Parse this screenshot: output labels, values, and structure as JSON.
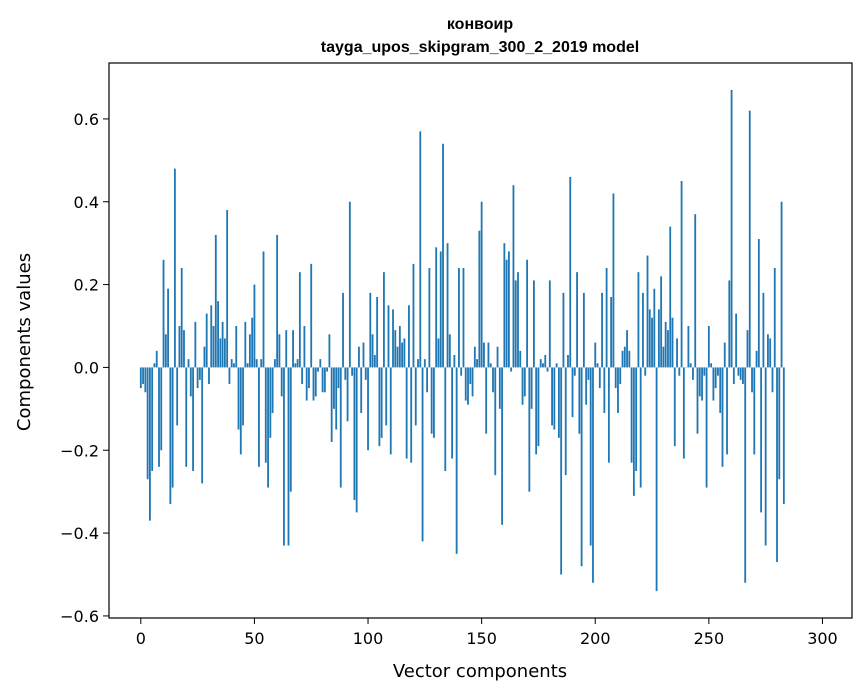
{
  "chart_data": {
    "type": "bar",
    "title_line1": "конвоир",
    "title_line2": "tayga_upos_skipgram_300_2_2019 model",
    "xlabel": "Vector components",
    "ylabel": "Components values",
    "xlim": [
      -14,
      313
    ],
    "ylim": [
      -0.605,
      0.735
    ],
    "xticks": [
      0,
      50,
      100,
      150,
      200,
      250,
      300
    ],
    "xtick_labels": [
      "0",
      "50",
      "100",
      "150",
      "200",
      "250",
      "300"
    ],
    "yticks": [
      -0.6,
      -0.4,
      -0.2,
      0.0,
      0.2,
      0.4,
      0.6
    ],
    "ytick_labels": [
      "−0.6",
      "−0.4",
      "−0.2",
      "0.0",
      "0.2",
      "0.4",
      "0.6"
    ],
    "bar_color": "#1f77b4",
    "grid": false,
    "values": [
      -0.05,
      -0.04,
      -0.06,
      -0.27,
      -0.37,
      -0.25,
      0.01,
      0.04,
      -0.24,
      -0.2,
      0.26,
      0.08,
      0.19,
      -0.33,
      -0.29,
      0.48,
      -0.14,
      0.1,
      0.24,
      0.09,
      -0.24,
      0.02,
      -0.07,
      -0.25,
      0.11,
      -0.05,
      -0.03,
      -0.28,
      0.05,
      0.13,
      -0.04,
      0.15,
      0.1,
      0.32,
      0.16,
      0.07,
      0.11,
      0.07,
      0.38,
      -0.04,
      0.02,
      0.01,
      0.1,
      -0.15,
      -0.21,
      -0.14,
      0.11,
      0.01,
      0.08,
      0.12,
      0.2,
      0.02,
      -0.24,
      0.02,
      0.28,
      -0.23,
      -0.29,
      -0.17,
      -0.11,
      0.02,
      0.32,
      0.08,
      -0.07,
      -0.43,
      0.09,
      -0.43,
      -0.3,
      0.09,
      0.01,
      0.02,
      0.23,
      -0.04,
      0.1,
      -0.08,
      -0.05,
      0.25,
      -0.08,
      -0.07,
      -0.01,
      0.02,
      -0.06,
      -0.06,
      -0.01,
      0.08,
      -0.18,
      -0.1,
      -0.15,
      -0.05,
      -0.29,
      0.18,
      -0.03,
      -0.13,
      0.4,
      -0.02,
      -0.32,
      -0.35,
      0.05,
      -0.11,
      0.06,
      -0.03,
      -0.2,
      0.18,
      0.08,
      0.03,
      0.17,
      -0.19,
      -0.17,
      0.23,
      -0.14,
      0.15,
      -0.21,
      0.14,
      0.09,
      0.05,
      0.1,
      0.06,
      0.07,
      -0.22,
      0.15,
      -0.23,
      0.25,
      -0.14,
      0.02,
      0.57,
      -0.42,
      0.02,
      -0.06,
      0.24,
      -0.16,
      -0.17,
      0.29,
      0.07,
      0.28,
      0.54,
      -0.25,
      0.3,
      0.08,
      -0.22,
      0.03,
      -0.45,
      0.24,
      -0.02,
      0.24,
      -0.08,
      -0.09,
      -0.04,
      -0.07,
      0.05,
      0.02,
      0.33,
      0.4,
      0.06,
      -0.16,
      0.06,
      0.01,
      -0.06,
      -0.26,
      0.05,
      -0.1,
      -0.38,
      0.3,
      0.26,
      0.28,
      -0.01,
      0.44,
      0.21,
      0.23,
      0.04,
      -0.09,
      -0.07,
      0.26,
      -0.3,
      -0.1,
      0.21,
      -0.21,
      -0.19,
      0.02,
      0.01,
      0.03,
      -0.01,
      0.21,
      -0.14,
      -0.15,
      0.01,
      -0.17,
      -0.5,
      0.18,
      -0.26,
      0.03,
      0.46,
      -0.12,
      -0.02,
      0.23,
      -0.16,
      -0.48,
      0.18,
      -0.09,
      -0.03,
      -0.43,
      -0.52,
      0.06,
      0.01,
      -0.05,
      0.18,
      -0.11,
      0.24,
      -0.23,
      0.17,
      0.42,
      -0.05,
      -0.11,
      -0.04,
      0.04,
      0.05,
      0.09,
      0.04,
      -0.23,
      -0.31,
      -0.25,
      0.23,
      -0.29,
      0.18,
      -0.02,
      0.27,
      0.14,
      0.12,
      0.19,
      -0.54,
      0.14,
      0.22,
      0.05,
      0.11,
      0.09,
      0.34,
      0.12,
      -0.19,
      0.07,
      -0.02,
      0.45,
      -0.22,
      0.0,
      0.1,
      0.01,
      -0.03,
      0.37,
      -0.16,
      -0.07,
      -0.08,
      -0.02,
      -0.29,
      0.1,
      0.01,
      -0.08,
      -0.05,
      -0.02,
      -0.11,
      -0.24,
      0.06,
      -0.21,
      0.21,
      0.67,
      -0.04,
      0.13,
      -0.02,
      -0.03,
      -0.04,
      -0.52,
      0.09,
      0.62,
      -0.06,
      -0.21,
      0.04,
      0.31,
      -0.35,
      0.18,
      -0.43,
      0.08,
      0.07,
      -0.06,
      0.24,
      -0.47,
      -0.27,
      0.4,
      -0.33
    ]
  }
}
